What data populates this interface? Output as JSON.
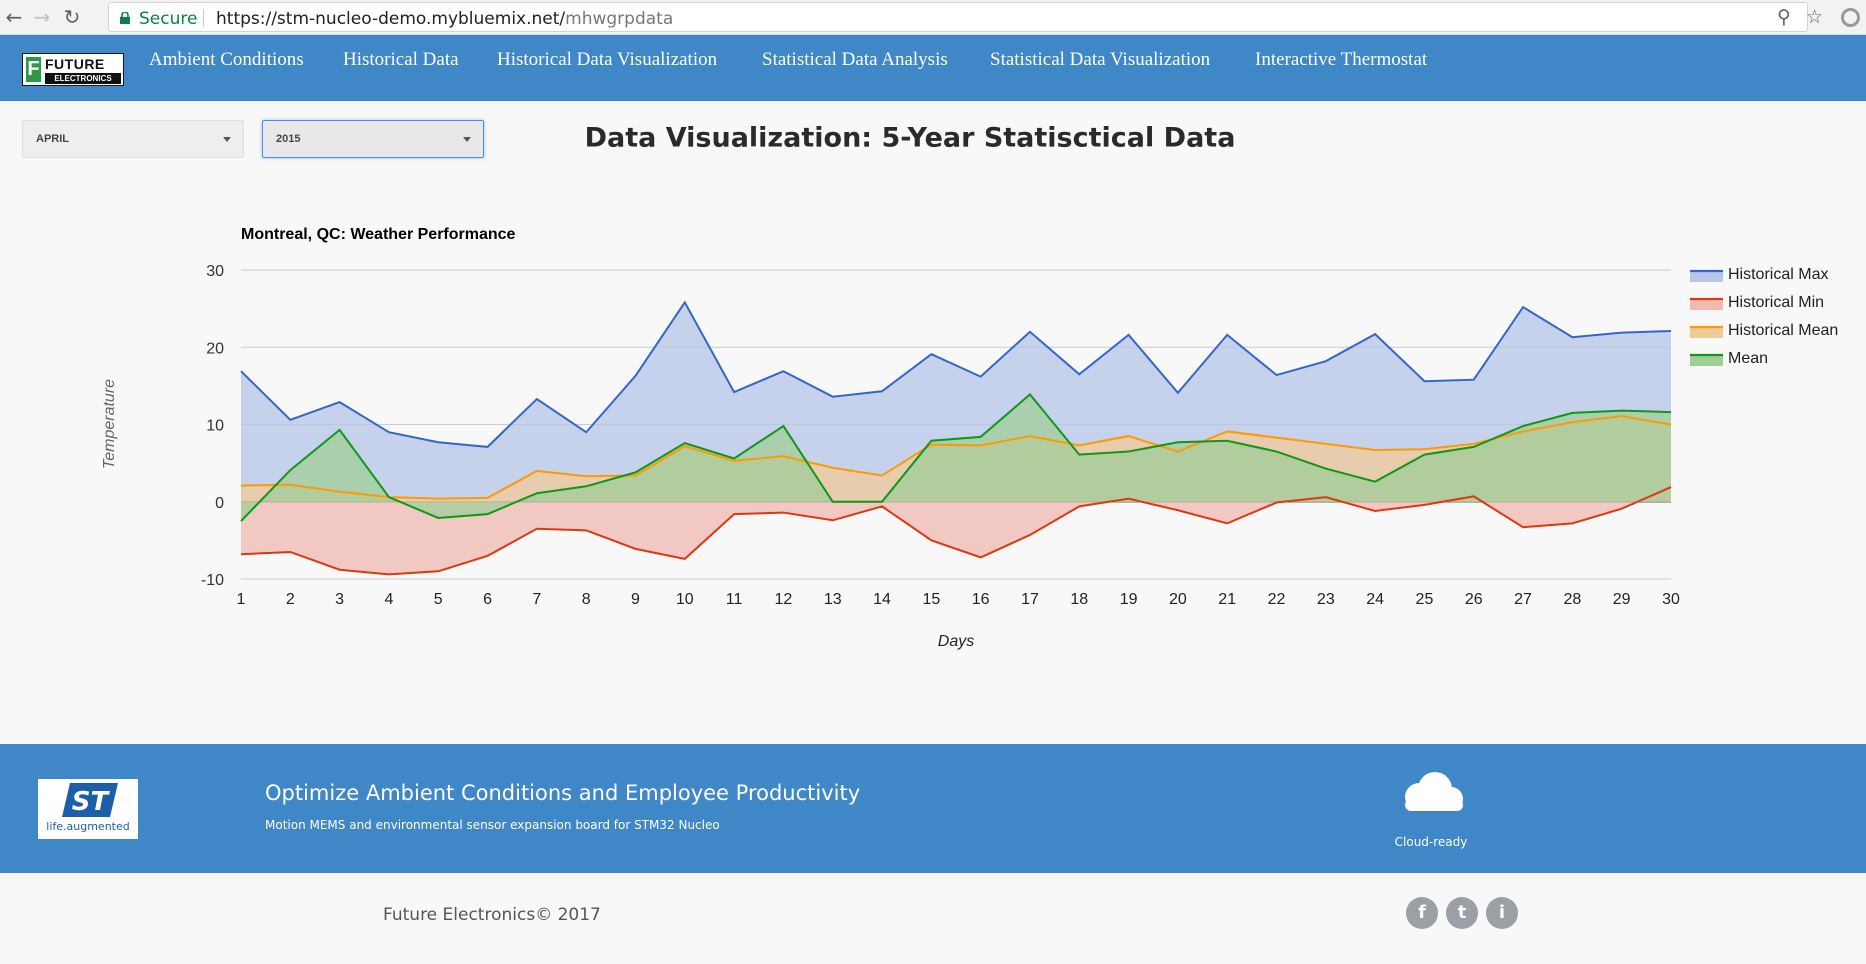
{
  "browser": {
    "secure_label": "Secure",
    "url_host": "https://stm-nucleo-demo.mybluemix.net/",
    "url_path": "mhwgrpdata"
  },
  "nav": {
    "items": [
      "Ambient Conditions",
      "Historical Data",
      "Historical Data Visualization",
      "Statistical Data Analysis",
      "Statistical Data Visualization",
      "Interactive Thermostat"
    ]
  },
  "logo": {
    "line1": "FUTURE",
    "line2": "ELECTRONICS",
    "letter": "F"
  },
  "filters": {
    "month": "APRIL",
    "year": "2015"
  },
  "page_title": "Data Visualization: 5-Year Statisctical Data",
  "chart_data": {
    "type": "area",
    "title": "Montreal, QC: Weather Performance",
    "xlabel": "Days",
    "ylabel": "Temperature",
    "ylim": [
      -10,
      30
    ],
    "yticks": [
      30,
      20,
      10,
      0,
      -10
    ],
    "grid": true,
    "legend_position": "right",
    "x": [
      1,
      2,
      3,
      4,
      5,
      6,
      7,
      8,
      9,
      10,
      11,
      12,
      13,
      14,
      15,
      16,
      17,
      18,
      19,
      20,
      21,
      22,
      23,
      24,
      25,
      26,
      27,
      28,
      29,
      30
    ],
    "series": [
      {
        "name": "Historical Max",
        "color": "#3366cc",
        "fill": "#b6c5e8",
        "values": [
          16.9,
          10.6,
          12.9,
          9.0,
          7.7,
          7.1,
          13.3,
          9.0,
          16.3,
          25.8,
          14.2,
          16.9,
          13.6,
          14.3,
          19.1,
          16.2,
          22.0,
          16.5,
          21.6,
          14.1,
          21.6,
          16.4,
          18.2,
          21.7,
          15.6,
          15.8,
          25.2,
          21.3,
          21.9,
          22.1
        ]
      },
      {
        "name": "Historical Min",
        "color": "#dc3912",
        "fill": "#efbab0",
        "values": [
          -6.8,
          -6.5,
          -8.8,
          -9.4,
          -9.0,
          -7.0,
          -3.5,
          -3.7,
          -6.1,
          -7.4,
          -1.6,
          -1.4,
          -2.4,
          -0.6,
          -5.0,
          -7.2,
          -4.3,
          -0.6,
          0.4,
          -1.1,
          -2.8,
          -0.1,
          0.6,
          -1.2,
          -0.4,
          0.7,
          -3.3,
          -2.8,
          -0.9,
          1.9
        ]
      },
      {
        "name": "Historical Mean",
        "color": "#ff9900",
        "fill": "#f1c99a",
        "values": [
          2.1,
          2.2,
          1.3,
          0.6,
          0.4,
          0.5,
          4.0,
          3.3,
          3.4,
          7.2,
          5.3,
          5.9,
          4.4,
          3.4,
          7.4,
          7.3,
          8.5,
          7.3,
          8.5,
          6.5,
          9.1,
          8.3,
          7.5,
          6.7,
          6.8,
          7.5,
          9.1,
          10.3,
          11.1,
          10.0
        ]
      },
      {
        "name": "Mean",
        "color": "#109618",
        "fill": "#9fce97",
        "values": [
          -2.5,
          4.1,
          9.3,
          0.6,
          -2.1,
          -1.6,
          1.1,
          2.0,
          3.8,
          7.6,
          5.6,
          9.8,
          0.0,
          0.0,
          7.9,
          8.4,
          13.9,
          6.1,
          6.5,
          7.7,
          7.9,
          6.5,
          4.3,
          2.6,
          6.1,
          7.1,
          9.8,
          11.5,
          11.8,
          11.6
        ]
      }
    ]
  },
  "footer": {
    "title": "Optimize Ambient Conditions and Employee Productivity",
    "subtitle": "Motion MEMS and environmental sensor expansion board for STM32 Nucleo",
    "st_tagline": "life.augmented",
    "cloud_label": "Cloud-ready",
    "copyright": "Future Electronics© 2017",
    "social": [
      "f",
      "t",
      "i"
    ]
  }
}
